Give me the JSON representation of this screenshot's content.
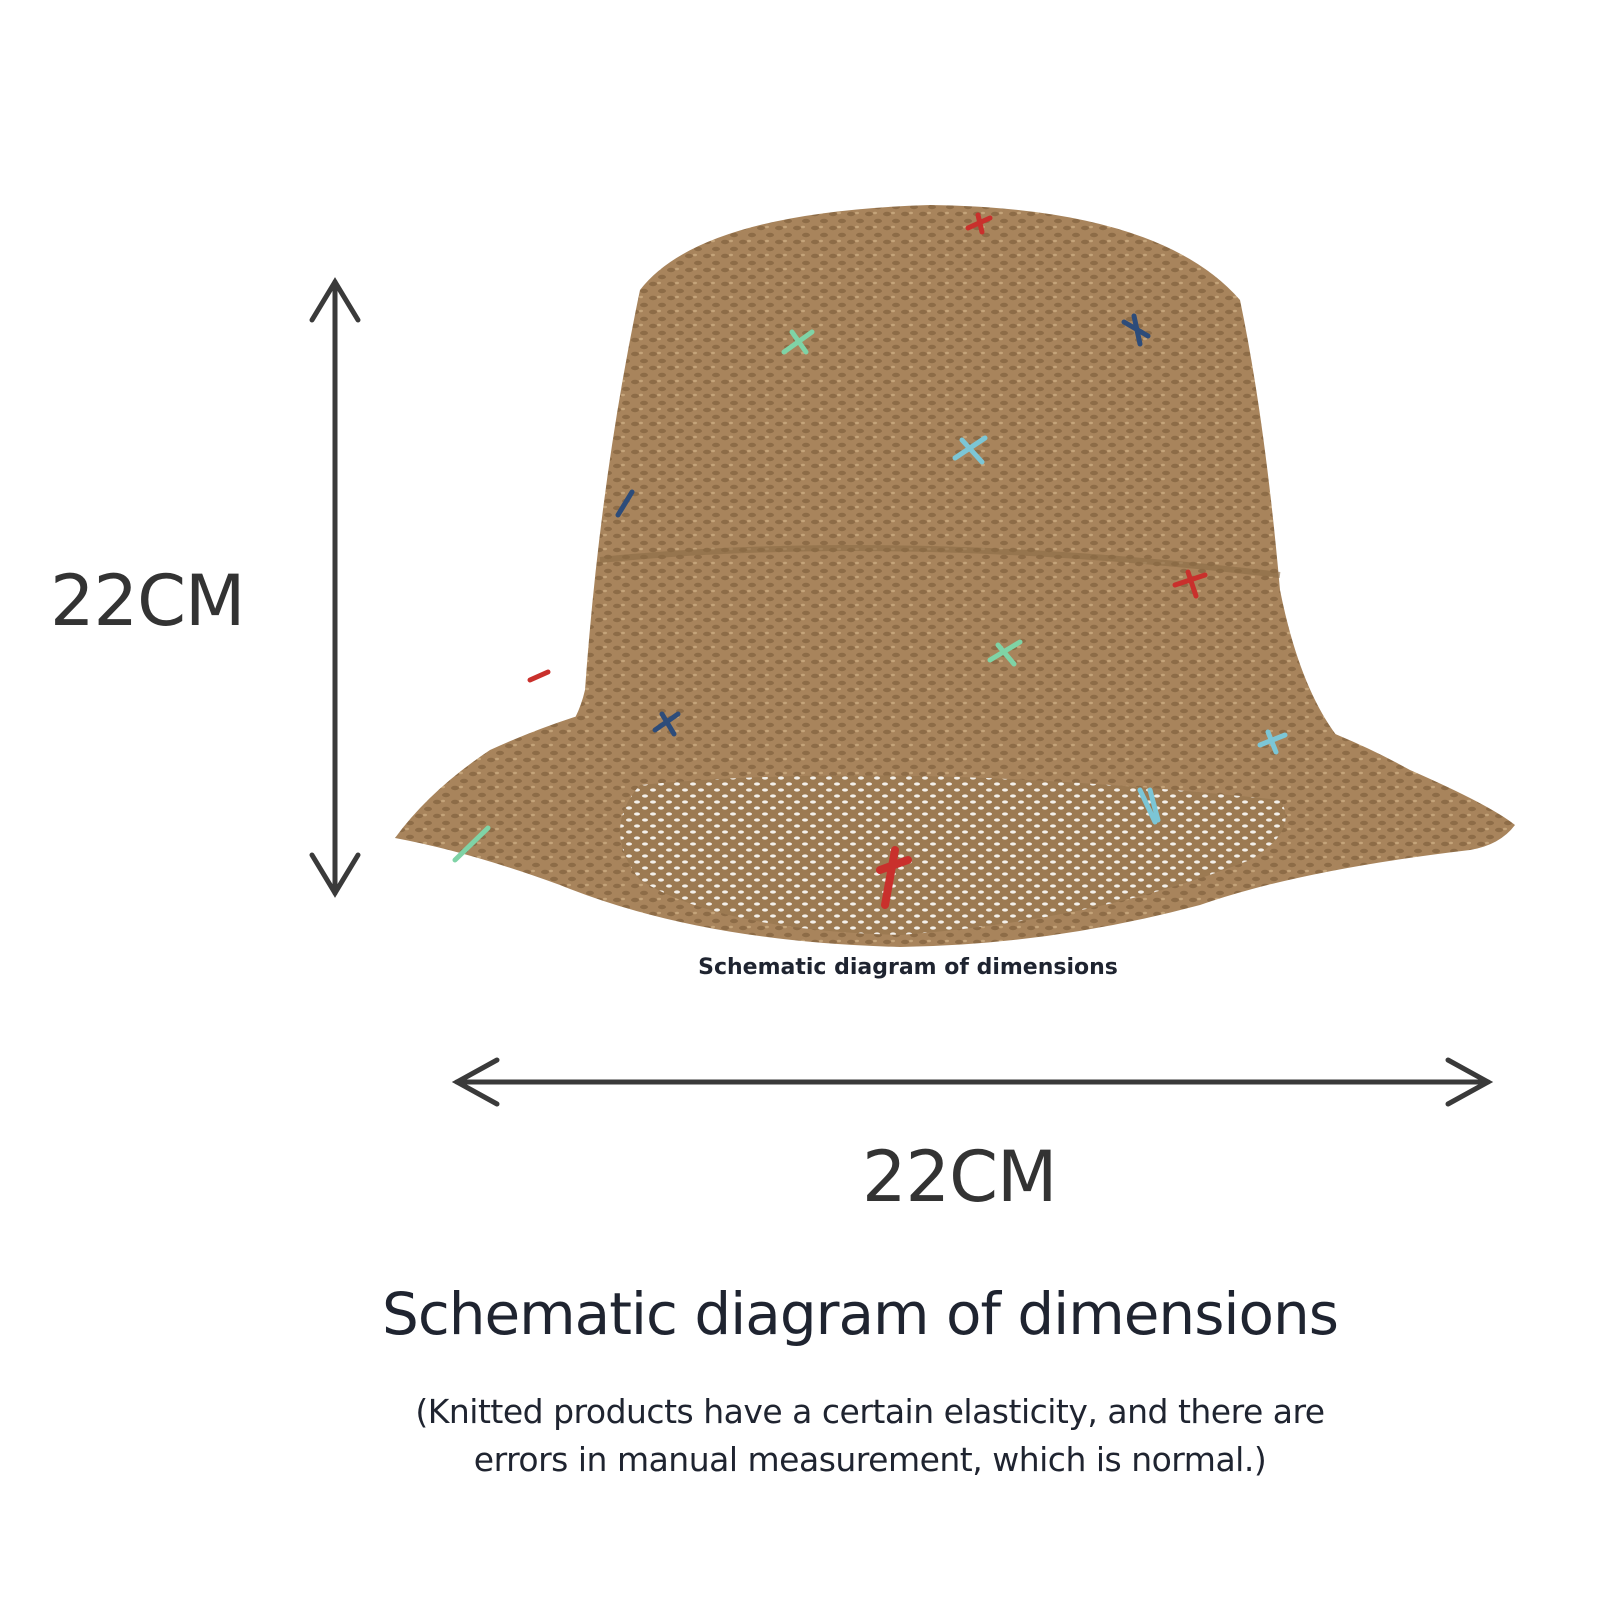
{
  "dimensions": {
    "height_label": "22CM",
    "width_label": "22CM"
  },
  "image_caption": "Schematic diagram of dimensions",
  "title": "Schematic diagram of dimensions",
  "note_line1": "(Knitted products have a certain elasticity, and there are",
  "note_line2": "errors in manual measurement, which is normal.)",
  "colors": {
    "straw": "#a8845c",
    "straw_dark": "#8a6a45",
    "arrow": "#3a3a3a",
    "text": "#1f2430",
    "stitch_colors": [
      "#c9302c",
      "#7fd3a6",
      "#2d4c7a",
      "#7cc6d6"
    ]
  }
}
